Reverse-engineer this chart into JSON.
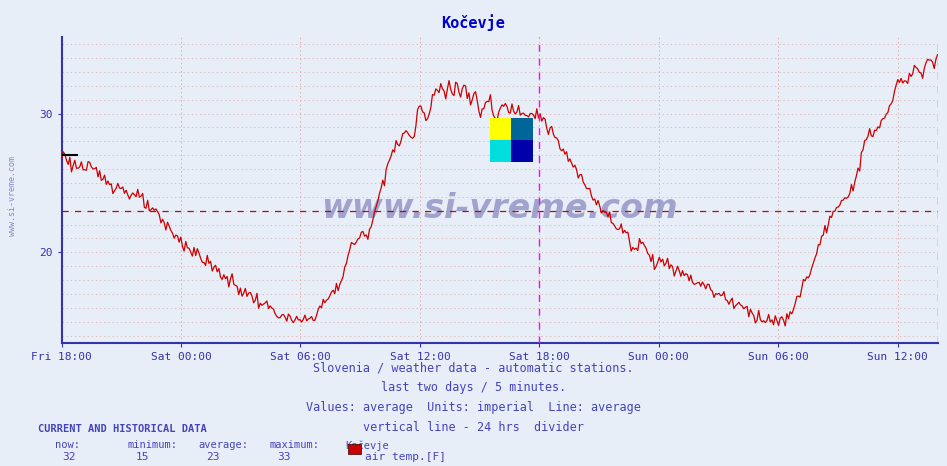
{
  "title": "Kočevje",
  "title_color": "#0000cc",
  "bg_color": "#e8eef8",
  "plot_bg_color": "#e8eef8",
  "line_color": "#cc0000",
  "grid_color": "#ddaaaa",
  "axis_color": "#3333aa",
  "ylim": [
    13.5,
    35.5
  ],
  "yticks": [
    20,
    30
  ],
  "xlabel_times": [
    "Fri 18:00",
    "Sat 00:00",
    "Sat 06:00",
    "Sat 12:00",
    "Sat 18:00",
    "Sun 00:00",
    "Sun 06:00",
    "Sun 12:00"
  ],
  "average_line_y": 23,
  "average_line_color": "#cc0000",
  "vline_color": "#ff00ff",
  "now_val": 32,
  "min_val": 15,
  "avg_val": 23,
  "max_val": 33,
  "footer_lines": [
    "Slovenia / weather data - automatic stations.",
    "last two days / 5 minutes.",
    "Values: average  Units: imperial  Line: average",
    "vertical line - 24 hrs  divider"
  ],
  "footer_color": "#4444bb",
  "watermark_text": "www.si-vreme.com",
  "watermark_color": "#8888cc",
  "sidebar_text": "www.si-vreme.com",
  "sidebar_color": "#7777bb",
  "current_label": "CURRENT AND HISTORICAL DATA",
  "stat_labels": [
    "now:",
    "minimum:",
    "average:",
    "maximum:",
    "Kočevje"
  ],
  "legend_label": "air temp.[F]",
  "legend_color": "#cc0000",
  "tick_label_color": "#3333aa"
}
